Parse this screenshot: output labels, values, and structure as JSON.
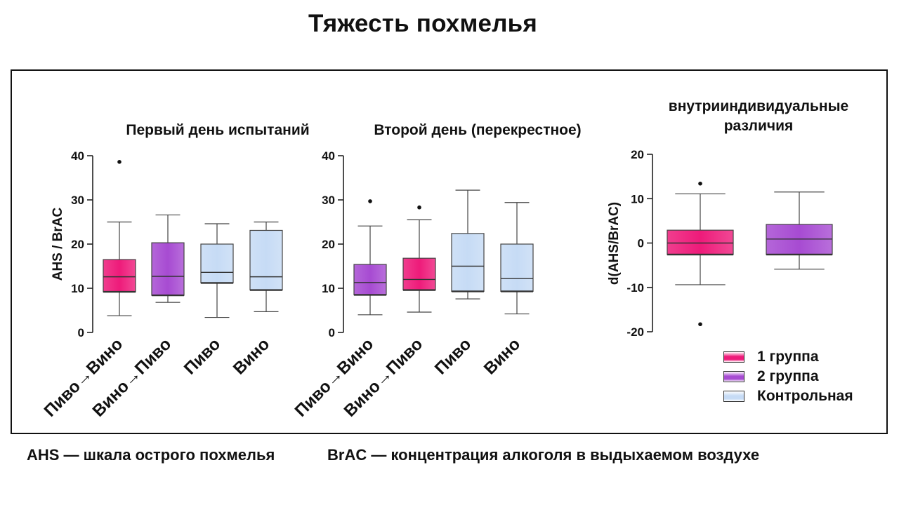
{
  "page_title": "Тяжесть похмелья",
  "colors": {
    "group1": "#ee1b7a",
    "group2": "#a74bd2",
    "control": "#c6dbf5"
  },
  "legend": [
    {
      "label": "1 группа",
      "color": "#ee1b7a"
    },
    {
      "label": "2 группа",
      "color": "#a74bd2"
    },
    {
      "label": "Контрольная",
      "color": "#c6dbf5"
    }
  ],
  "footnotes": {
    "ahs": "AHS — шкала острого похмелья",
    "brac": "BrAC — концентрация алкоголя в выдыхаемом воздухе"
  },
  "chart_data": [
    {
      "type": "box",
      "title": "Первый день испытаний",
      "ylabel": "AHS / BrAC",
      "ylim": [
        0,
        40
      ],
      "yticks": [
        0,
        10,
        20,
        30,
        40
      ],
      "categories": [
        "Пиво→Вино",
        "Вино→Пиво",
        "Пиво",
        "Вино"
      ],
      "boxes": [
        {
          "group": "group1",
          "min": 3.8,
          "q1": 9.2,
          "median": 12.6,
          "q3": 16.5,
          "max": 25.0,
          "outliers": [
            38.6
          ]
        },
        {
          "group": "group2",
          "min": 6.8,
          "q1": 8.4,
          "median": 12.7,
          "q3": 20.3,
          "max": 26.6,
          "outliers": []
        },
        {
          "group": "control",
          "min": 3.4,
          "q1": 11.2,
          "median": 13.6,
          "q3": 20.0,
          "max": 24.6,
          "outliers": []
        },
        {
          "group": "control",
          "min": 4.7,
          "q1": 9.6,
          "median": 12.6,
          "q3": 23.1,
          "max": 25.0,
          "outliers": []
        }
      ]
    },
    {
      "type": "box",
      "title": "Второй день (перекрестное)",
      "ylabel": "",
      "ylim": [
        0,
        40
      ],
      "yticks": [
        0,
        10,
        20,
        30,
        40
      ],
      "categories": [
        "Пиво→Вино",
        "Вино→Пиво",
        "Пиво",
        "Вино"
      ],
      "boxes": [
        {
          "group": "group2",
          "min": 4.0,
          "q1": 8.5,
          "median": 11.3,
          "q3": 15.4,
          "max": 24.1,
          "outliers": [
            29.7
          ]
        },
        {
          "group": "group1",
          "min": 4.6,
          "q1": 9.6,
          "median": 12.0,
          "q3": 16.8,
          "max": 25.5,
          "outliers": [
            28.3
          ]
        },
        {
          "group": "control",
          "min": 7.6,
          "q1": 9.3,
          "median": 15.0,
          "q3": 22.4,
          "max": 32.2,
          "outliers": []
        },
        {
          "group": "control",
          "min": 4.2,
          "q1": 9.3,
          "median": 12.2,
          "q3": 20.0,
          "max": 29.4,
          "outliers": []
        }
      ]
    },
    {
      "type": "box",
      "title": "внутрииндивидуальные различия",
      "title_lines": [
        "внутрииндивидуальные",
        "различия"
      ],
      "ylabel": "d(AHS/BrAC)",
      "ylim": [
        -20,
        20
      ],
      "yticks": [
        -20,
        -10,
        0,
        10,
        20
      ],
      "categories": [
        "",
        ""
      ],
      "boxes": [
        {
          "group": "group1",
          "min": -9.4,
          "q1": -2.6,
          "median": 0.0,
          "q3": 2.9,
          "max": 11.1,
          "outliers": [
            13.4,
            -18.3
          ]
        },
        {
          "group": "group2",
          "min": -5.9,
          "q1": -2.6,
          "median": 0.9,
          "q3": 4.2,
          "max": 11.5,
          "outliers": []
        }
      ]
    }
  ]
}
